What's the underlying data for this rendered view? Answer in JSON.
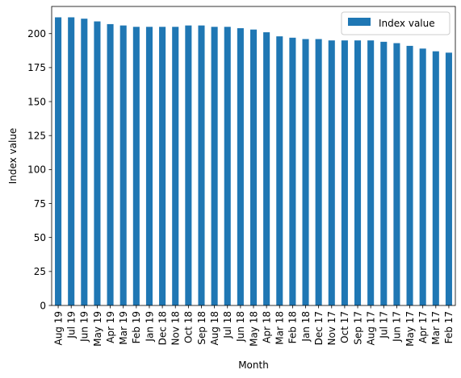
{
  "chart_data": {
    "type": "bar",
    "xlabel": "Month",
    "ylabel": "Index value",
    "ylim": [
      0,
      220
    ],
    "yticks": [
      0,
      25,
      50,
      75,
      100,
      125,
      150,
      175,
      200
    ],
    "legend_position": "top-right",
    "bar_color": "#1f77b4",
    "categories": [
      "Aug 19",
      "Jul 19",
      "Jun 19",
      "May 19",
      "Apr 19",
      "Mar 19",
      "Feb 19",
      "Jan 19",
      "Dec 18",
      "Nov 18",
      "Oct 18",
      "Sep 18",
      "Aug 18",
      "Jul 18",
      "Jun 18",
      "May 18",
      "Apr 18",
      "Mar 18",
      "Feb 18",
      "Jan 18",
      "Dec 17",
      "Nov 17",
      "Oct 17",
      "Sep 17",
      "Aug 17",
      "Jul 17",
      "Jun 17",
      "May 17",
      "Apr 17",
      "Mar 17",
      "Feb 17"
    ],
    "series": [
      {
        "name": "Index value",
        "values": [
          212,
          212,
          211,
          209,
          207,
          206,
          205,
          205,
          205,
          205,
          206,
          206,
          205,
          205,
          204,
          203,
          201,
          198,
          197,
          196,
          196,
          195,
          195,
          195,
          195,
          194,
          193,
          191,
          189,
          187,
          186
        ]
      }
    ]
  }
}
